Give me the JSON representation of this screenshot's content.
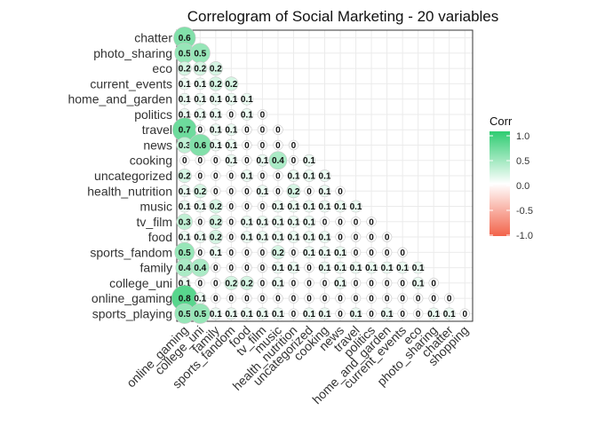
{
  "chart_data": {
    "type": "heatmap",
    "title": "Correlogram of Social Marketing - 20 variables",
    "variables": [
      "sports_playing",
      "online_gaming",
      "college_uni",
      "family",
      "sports_fandom",
      "food",
      "tv_film",
      "music",
      "health_nutrition",
      "uncategorized",
      "cooking",
      "news",
      "travel",
      "politics",
      "home_and_garden",
      "current_events",
      "eco",
      "photo_sharing",
      "chatter",
      "shopping"
    ],
    "row_labels": [
      "chatter",
      "photo_sharing",
      "eco",
      "current_events",
      "home_and_garden",
      "politics",
      "travel",
      "news",
      "cooking",
      "uncategorized",
      "health_nutrition",
      "music",
      "tv_film",
      "food",
      "sports_fandom",
      "family",
      "college_uni",
      "online_gaming",
      "sports_playing"
    ],
    "column_labels": [
      "online_gaming",
      "college_uni",
      "family",
      "sports_fandom",
      "food",
      "tv_film",
      "music",
      "health_nutrition",
      "uncategorized",
      "cooking",
      "news",
      "travel",
      "politics",
      "home_and_garden",
      "current_events",
      "eco",
      "photo_sharing",
      "chatter",
      "shopping"
    ],
    "rows": [
      {
        "var": "chatter",
        "values": [
          0.6
        ]
      },
      {
        "var": "photo_sharing",
        "values": [
          0.5,
          0.5
        ]
      },
      {
        "var": "eco",
        "values": [
          0.2,
          0.2,
          0.2
        ]
      },
      {
        "var": "current_events",
        "values": [
          0.1,
          0.1,
          0.2,
          0.2
        ]
      },
      {
        "var": "home_and_garden",
        "values": [
          0.1,
          0.1,
          0.1,
          0.1,
          0.1
        ]
      },
      {
        "var": "politics",
        "values": [
          0.1,
          0.1,
          0.1,
          0,
          0.1,
          0
        ]
      },
      {
        "var": "travel",
        "values": [
          0.7,
          0,
          0.1,
          0.1,
          0,
          0,
          0
        ]
      },
      {
        "var": "news",
        "values": [
          0.3,
          0.6,
          0.1,
          0.1,
          0,
          0,
          0,
          0
        ]
      },
      {
        "var": "cooking",
        "values": [
          0,
          0,
          0,
          0.1,
          0,
          0.1,
          0.4,
          0,
          0.1
        ]
      },
      {
        "var": "uncategorized",
        "values": [
          0.2,
          0,
          0,
          0,
          0.1,
          0,
          0,
          0.1,
          0.1,
          0.1
        ]
      },
      {
        "var": "health_nutrition",
        "values": [
          0.1,
          0.2,
          0,
          0,
          0,
          0.1,
          0,
          0.2,
          0,
          0.1,
          0
        ]
      },
      {
        "var": "music",
        "values": [
          0.1,
          0.1,
          0.2,
          0,
          0,
          0,
          0.1,
          0.1,
          0.1,
          0.1,
          0.1,
          0.1
        ]
      },
      {
        "var": "tv_film",
        "values": [
          0.3,
          0,
          0.2,
          0,
          0.1,
          0.1,
          0.1,
          0.1,
          0.1,
          0,
          0,
          0,
          0
        ]
      },
      {
        "var": "food",
        "values": [
          0.1,
          0.1,
          0.2,
          0,
          0.1,
          0.1,
          0.1,
          0.1,
          0.1,
          0.1,
          0,
          0,
          0,
          0
        ]
      },
      {
        "var": "sports_fandom",
        "values": [
          0.5,
          0,
          0.1,
          0,
          0,
          0,
          0.2,
          0,
          0.1,
          0.1,
          0.1,
          0,
          0,
          0,
          0
        ]
      },
      {
        "var": "family",
        "values": [
          0.4,
          0.4,
          0,
          0,
          0,
          0,
          0.1,
          0.1,
          0,
          0.1,
          0.1,
          0.1,
          0.1,
          0.1,
          0.1,
          0.1
        ]
      },
      {
        "var": "college_uni",
        "values": [
          0.1,
          0,
          0,
          0.2,
          0.2,
          0,
          0.1,
          0,
          0,
          0,
          0.1,
          0,
          0,
          0,
          0,
          0.1,
          0
        ]
      },
      {
        "var": "online_gaming",
        "values": [
          0.8,
          0.1,
          0,
          0,
          0,
          0,
          0,
          0,
          0,
          0,
          0,
          0,
          0,
          0,
          0,
          0,
          0,
          0
        ]
      },
      {
        "var": "sports_playing",
        "values": [
          0.5,
          0.5,
          0.1,
          0.1,
          0.1,
          0.1,
          0.1,
          0,
          0.1,
          0.1,
          0,
          0.1,
          0,
          0.1,
          0,
          0,
          0.1,
          0.1,
          0
        ]
      }
    ],
    "legend": {
      "title": "Corr",
      "ticks": [
        "1.0",
        "0.5",
        "0.0",
        "-0.5",
        "-1.0"
      ],
      "tick_values": [
        1.0,
        0.5,
        0.0,
        -0.5,
        -1.0
      ],
      "colors": {
        "high": "#2ECC71",
        "mid": "#FFFFFF",
        "low": "#F2634A"
      }
    },
    "grid": true,
    "legend_position": "right"
  }
}
